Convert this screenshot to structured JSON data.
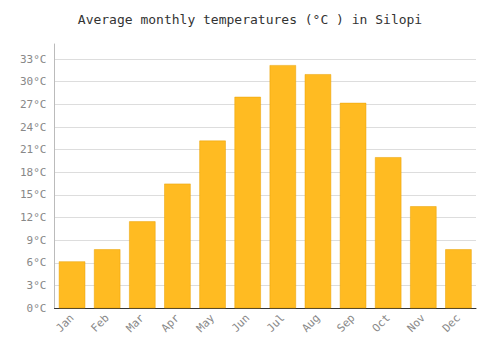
{
  "chart_data": {
    "type": "bar",
    "title": "Average monthly temperatures (°C ) in Silopi",
    "categories": [
      "Jan",
      "Feb",
      "Mar",
      "Apr",
      "May",
      "Jun",
      "Jul",
      "Aug",
      "Sep",
      "Oct",
      "Nov",
      "Dec"
    ],
    "values": [
      6.2,
      7.8,
      11.5,
      16.5,
      22.2,
      28.0,
      32.2,
      31.0,
      27.2,
      20.0,
      13.5,
      7.8
    ],
    "color": "#FFBB22",
    "ylim": [
      0,
      35
    ],
    "yticks": [
      {
        "value": 0,
        "label": "0°C"
      },
      {
        "value": 3,
        "label": "3°C"
      },
      {
        "value": 6,
        "label": "6°C"
      },
      {
        "value": 9,
        "label": "9°C"
      },
      {
        "value": 12,
        "label": "12°C"
      },
      {
        "value": 15,
        "label": "15°C"
      },
      {
        "value": 18,
        "label": "18°C"
      },
      {
        "value": 21,
        "label": "21°C"
      },
      {
        "value": 24,
        "label": "24°C"
      },
      {
        "value": 27,
        "label": "27°C"
      },
      {
        "value": 30,
        "label": "30°C"
      },
      {
        "value": 33,
        "label": "33°C"
      }
    ],
    "grid": true
  }
}
